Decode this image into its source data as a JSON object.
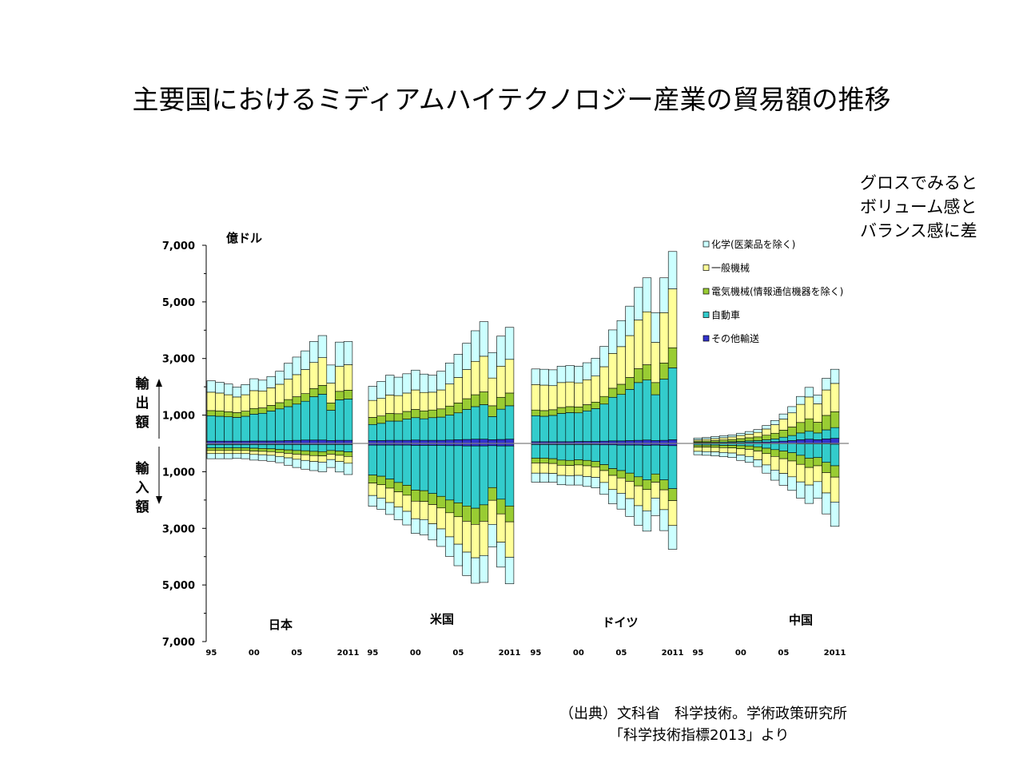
{
  "title": "主要国におけるミディアムハイテクノロジー産業の貿易額の推移",
  "note": [
    "グロスでみると",
    "ボリューム感と",
    "バランス感に差"
  ],
  "source": {
    "line1": "（出典）文科省　科学技術。学術政策研究所",
    "line2": "「科学技術指標2013」より"
  },
  "chart_data": {
    "type": "bar",
    "unit_label": "億ドル",
    "export_label": [
      "輸",
      "出",
      "額"
    ],
    "import_label": [
      "輸",
      "入",
      "額"
    ],
    "y_ticks": [
      "7,000",
      "5,000",
      "3,000",
      "1,000",
      "1,000",
      "3,000",
      "5,000",
      "7,000"
    ],
    "ylim": [
      -7000,
      7000
    ],
    "legend": [
      {
        "name": "化学(医薬品を除く)",
        "color": "#ccffff"
      },
      {
        "name": "一般機械",
        "color": "#ffff99"
      },
      {
        "name": "電気機械(情報通信機器を除く)",
        "color": "#99cc33"
      },
      {
        "name": "自動車",
        "color": "#33cccc"
      },
      {
        "name": "その他輸送",
        "color": "#3333cc"
      }
    ],
    "years": [
      1995,
      1996,
      1997,
      1998,
      1999,
      2000,
      2001,
      2002,
      2003,
      2004,
      2005,
      2006,
      2007,
      2008,
      2009,
      2010,
      2011
    ],
    "countries": [
      {
        "name": "日本",
        "x_ticks": [
          "95",
          "00",
          "05",
          "2011"
        ],
        "export": {
          "chem": [
            400,
            380,
            380,
            350,
            360,
            420,
            380,
            400,
            460,
            560,
            620,
            660,
            740,
            780,
            640,
            860,
            820
          ],
          "mach": [
            650,
            630,
            600,
            550,
            580,
            630,
            600,
            620,
            650,
            720,
            780,
            850,
            920,
            980,
            700,
            880,
            900
          ],
          "elec": [
            180,
            190,
            180,
            170,
            180,
            200,
            190,
            200,
            220,
            250,
            260,
            270,
            290,
            310,
            260,
            300,
            310
          ],
          "auto": [
            900,
            880,
            860,
            840,
            880,
            950,
            980,
            1060,
            1130,
            1200,
            1280,
            1370,
            1530,
            1620,
            1070,
            1430,
            1460
          ],
          "trans": [
            80,
            80,
            80,
            80,
            80,
            85,
            85,
            85,
            90,
            100,
            110,
            120,
            120,
            120,
            100,
            110,
            110
          ]
        },
        "import": {
          "chem": [
            180,
            180,
            180,
            170,
            180,
            200,
            200,
            210,
            220,
            260,
            290,
            310,
            320,
            340,
            280,
            370,
            400
          ],
          "mach": [
            110,
            110,
            110,
            110,
            110,
            120,
            120,
            130,
            140,
            160,
            180,
            200,
            210,
            220,
            190,
            220,
            240
          ],
          "elec": [
            90,
            90,
            90,
            90,
            90,
            100,
            100,
            100,
            110,
            120,
            130,
            140,
            150,
            150,
            130,
            150,
            160
          ],
          "auto": [
            120,
            120,
            120,
            120,
            120,
            130,
            140,
            150,
            170,
            190,
            210,
            220,
            240,
            250,
            210,
            230,
            260
          ],
          "trans": [
            40,
            40,
            40,
            40,
            40,
            40,
            40,
            40,
            40,
            40,
            40,
            40,
            40,
            40,
            40,
            40,
            40
          ]
        }
      },
      {
        "name": "米国",
        "x_ticks": [
          "95",
          "00",
          "05",
          "2011"
        ],
        "export": {
          "chem": [
            500,
            600,
            700,
            650,
            680,
            700,
            650,
            600,
            660,
            740,
            820,
            930,
            1080,
            1220,
            900,
            1060,
            1130
          ],
          "mach": [
            600,
            620,
            650,
            640,
            650,
            690,
            650,
            630,
            670,
            780,
            900,
            1030,
            1180,
            1260,
            980,
            1100,
            1190
          ],
          "elec": [
            250,
            260,
            270,
            260,
            270,
            290,
            280,
            270,
            290,
            320,
            350,
            380,
            420,
            450,
            380,
            420,
            450
          ],
          "auto": [
            570,
            610,
            680,
            680,
            750,
            790,
            760,
            800,
            820,
            880,
            950,
            1060,
            1150,
            1220,
            820,
            1070,
            1180
          ],
          "trans": [
            100,
            100,
            110,
            110,
            110,
            120,
            110,
            110,
            110,
            120,
            130,
            140,
            150,
            150,
            130,
            140,
            150
          ]
        },
        "import": {
          "chem": [
            380,
            400,
            420,
            450,
            480,
            520,
            540,
            570,
            620,
            690,
            760,
            830,
            900,
            950,
            800,
            880,
            940
          ],
          "mach": [
            440,
            470,
            510,
            540,
            570,
            620,
            640,
            680,
            740,
            850,
            970,
            1090,
            1180,
            1210,
            850,
            1000,
            1250
          ],
          "elec": [
            280,
            300,
            320,
            330,
            350,
            390,
            380,
            390,
            410,
            450,
            490,
            540,
            570,
            580,
            450,
            520,
            560
          ],
          "auto": [
            1060,
            1100,
            1200,
            1320,
            1420,
            1580,
            1600,
            1700,
            1800,
            1920,
            2020,
            2120,
            2200,
            2080,
            1480,
            1880,
            2120
          ],
          "trans": [
            60,
            60,
            60,
            60,
            60,
            70,
            70,
            70,
            70,
            80,
            80,
            90,
            90,
            90,
            80,
            90,
            90
          ]
        }
      },
      {
        "name": "ドイツ",
        "x_ticks": [
          "95",
          "00",
          "05",
          "2011"
        ],
        "export": {
          "chem": [
            550,
            560,
            560,
            580,
            580,
            590,
            600,
            630,
            720,
            830,
            920,
            1040,
            1150,
            1200,
            1050,
            1230,
            1320
          ],
          "mach": [
            900,
            900,
            850,
            880,
            870,
            850,
            880,
            920,
            1050,
            1230,
            1330,
            1480,
            1720,
            1870,
            1420,
            1780,
            2080
          ],
          "elec": [
            200,
            200,
            200,
            210,
            210,
            210,
            220,
            230,
            270,
            320,
            360,
            420,
            490,
            540,
            430,
            570,
            710
          ],
          "auto": [
            920,
            900,
            930,
            1000,
            1030,
            1010,
            1080,
            1160,
            1310,
            1540,
            1640,
            1810,
            2040,
            2120,
            1620,
            2160,
            2540
          ],
          "trans": [
            60,
            60,
            60,
            60,
            60,
            70,
            70,
            70,
            80,
            90,
            90,
            100,
            110,
            120,
            100,
            110,
            130
          ]
        },
        "import": {
          "chem": [
            320,
            320,
            310,
            330,
            330,
            340,
            350,
            370,
            420,
            500,
            560,
            630,
            690,
            720,
            620,
            740,
            840
          ],
          "mach": [
            360,
            360,
            350,
            360,
            360,
            370,
            380,
            370,
            420,
            500,
            540,
            610,
            700,
            750,
            560,
            700,
            880
          ],
          "elec": [
            170,
            170,
            170,
            180,
            180,
            180,
            190,
            190,
            210,
            240,
            260,
            290,
            320,
            340,
            290,
            350,
            420
          ],
          "auto": [
            480,
            480,
            500,
            550,
            560,
            540,
            560,
            600,
            700,
            840,
            900,
            990,
            1120,
            1220,
            1020,
            1220,
            1520
          ],
          "trans": [
            40,
            40,
            40,
            40,
            40,
            40,
            40,
            40,
            50,
            50,
            60,
            60,
            60,
            70,
            60,
            70,
            80
          ]
        }
      },
      {
        "name": "中国",
        "x_ticks": [
          "95",
          "00",
          "05",
          "2011"
        ],
        "export": {
          "chem": [
            60,
            60,
            70,
            70,
            70,
            80,
            90,
            100,
            120,
            150,
            180,
            220,
            280,
            340,
            310,
            410,
            500
          ],
          "mach": [
            50,
            60,
            70,
            80,
            90,
            110,
            130,
            160,
            220,
            300,
            390,
            500,
            640,
            770,
            650,
            900,
            1000
          ],
          "elec": [
            40,
            50,
            60,
            70,
            80,
            100,
            110,
            130,
            160,
            200,
            250,
            300,
            370,
            440,
            380,
            510,
            560
          ],
          "auto": [
            20,
            20,
            20,
            30,
            30,
            40,
            50,
            60,
            80,
            100,
            140,
            180,
            240,
            280,
            240,
            320,
            380
          ],
          "trans": [
            20,
            20,
            20,
            20,
            30,
            30,
            40,
            40,
            50,
            60,
            80,
            100,
            130,
            150,
            130,
            160,
            180
          ]
        },
        "import": {
          "chem": [
            120,
            130,
            140,
            150,
            160,
            190,
            210,
            240,
            290,
            360,
            420,
            480,
            570,
            650,
            590,
            740,
            860
          ],
          "mach": [
            150,
            160,
            160,
            170,
            180,
            220,
            250,
            310,
            400,
            480,
            520,
            560,
            620,
            620,
            560,
            720,
            880
          ],
          "elec": [
            70,
            70,
            80,
            80,
            90,
            110,
            120,
            150,
            190,
            240,
            270,
            290,
            320,
            330,
            290,
            360,
            400
          ],
          "auto": [
            50,
            50,
            50,
            60,
            60,
            70,
            80,
            110,
            160,
            210,
            260,
            320,
            400,
            500,
            480,
            650,
            760
          ],
          "trans": [
            10,
            10,
            10,
            10,
            10,
            10,
            10,
            10,
            10,
            10,
            10,
            10,
            20,
            20,
            20,
            20,
            30
          ]
        }
      }
    ]
  }
}
